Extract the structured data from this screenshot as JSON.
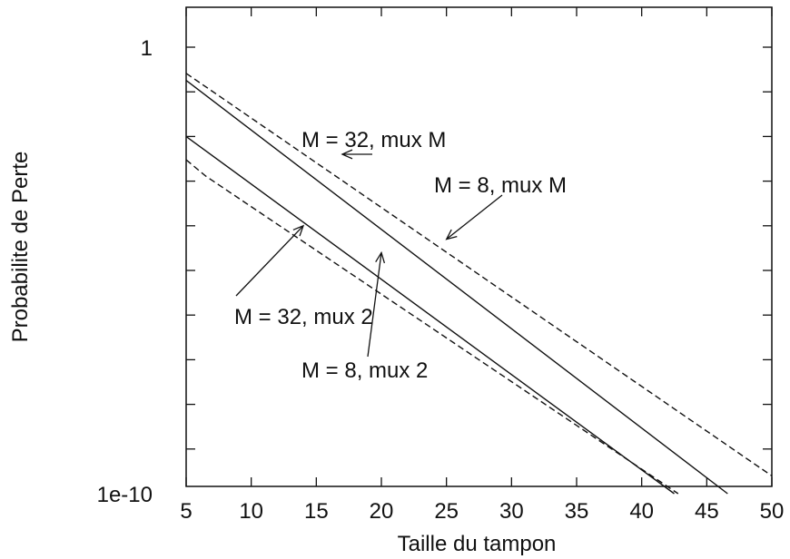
{
  "chart_data": {
    "type": "line",
    "xlabel": "Taille du tampon",
    "ylabel": "Probabilite de Perte",
    "xlim": [
      5,
      50
    ],
    "ylim": [
      1e-10,
      10
    ],
    "yscale": "log",
    "x_ticks": [
      5,
      10,
      15,
      20,
      25,
      30,
      35,
      40,
      45,
      50
    ],
    "x_tick_labels": [
      "5",
      "10",
      "15",
      "20",
      "25",
      "30",
      "35",
      "40",
      "45",
      "50"
    ],
    "y_ticks": [
      1,
      1e-10
    ],
    "y_tick_labels": [
      "1",
      "1e-10"
    ],
    "grid": false,
    "legend": "none",
    "series": [
      {
        "style": "dashed",
        "x": [
          5,
          50
        ],
        "y": [
          0.26,
          2.5e-10
        ]
      },
      {
        "style": "solid",
        "x": [
          5,
          46.6
        ],
        "y": [
          0.18,
          1e-10
        ]
      },
      {
        "style": "solid",
        "x": [
          5,
          42.5
        ],
        "y": [
          0.01,
          1e-10
        ]
      },
      {
        "style": "dashed",
        "x": [
          5,
          6.5,
          42.8
        ],
        "y": [
          0.003,
          0.0013,
          1e-10
        ]
      }
    ],
    "annotations": [
      {
        "text": "M = 32, mux M",
        "arrow_to": {
          "x": 17,
          "y": 0.004
        }
      },
      {
        "text": "M = 8, mux M",
        "arrow_to": {
          "x": 25,
          "y": 5e-05
        }
      },
      {
        "text": "M = 32, mux 2",
        "arrow_to": {
          "x": 14,
          "y": 0.0001
        }
      },
      {
        "text": "M = 8, mux 2",
        "arrow_to": {
          "x": 20,
          "y": 2.5e-05
        }
      }
    ]
  }
}
